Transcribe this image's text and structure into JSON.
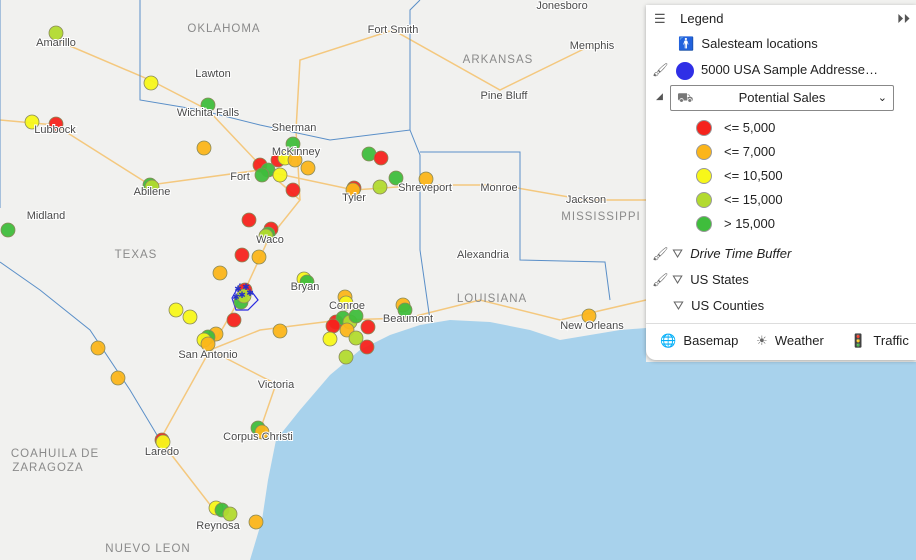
{
  "map_labels": [
    "Jonesboro",
    "OKLAHOMA",
    "Amarillo",
    "Fort Smith",
    "Memphis",
    "ARKANSAS",
    "Lawton",
    "Pine Bluff",
    "Wichita Falls",
    "Lubbock",
    "Sherman",
    "McKinney",
    "Fort",
    "Abilene",
    "Tyler",
    "Shreveport",
    "Monroe",
    "Jackson",
    "MISSISSIPPI",
    "Midland",
    "Waco",
    "TEXAS",
    "Alexandria",
    "Bryan",
    "LOUISIANA",
    "Conroe",
    "Beaumont",
    "New Orleans",
    "San Antonio",
    "Victoria",
    "Corpus Christi",
    "Laredo",
    "COAHUILA DE",
    "ZARAGOZA",
    "Reynosa",
    "NUEVO LEON"
  ],
  "legend": {
    "title": "Legend",
    "layers": [
      "Salesteam locations",
      "5000 USA Sample Addresse…"
    ],
    "field": "Potential Sales",
    "classes": [
      {
        "label": "<= 5,000",
        "color": "#f5231c"
      },
      {
        "label": "<= 7,000",
        "color": "#fbb51a"
      },
      {
        "label": "<= 10,500",
        "color": "#f7f71a"
      },
      {
        "label": "<= 15,000",
        "color": "#b2da2f"
      },
      {
        "label": "> 15,000",
        "color": "#3fbd3c"
      }
    ],
    "more_layers": [
      "Drive Time Buffer",
      "US States",
      "US Counties"
    ],
    "tools": [
      "Basemap",
      "Weather",
      "Traffic"
    ]
  }
}
